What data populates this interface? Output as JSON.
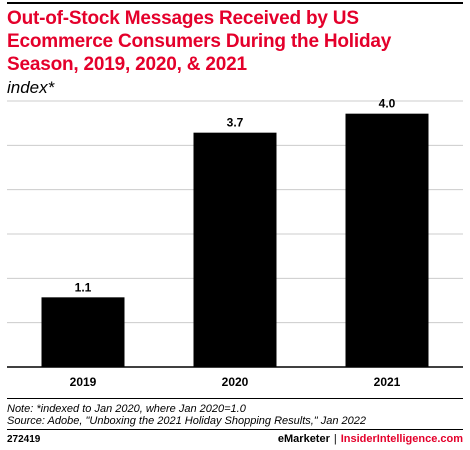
{
  "title": "Out-of-Stock Messages Received by US Ecommerce Consumers During the Holiday Season, 2019, 2020, & 2021",
  "subtitle": "index*",
  "chart_data": {
    "type": "bar",
    "categories": [
      "2019",
      "2020",
      "2021"
    ],
    "values": [
      1.1,
      3.7,
      4.0
    ],
    "value_labels": [
      "1.1",
      "3.7",
      "4.0"
    ],
    "ylim": [
      0,
      4.2
    ],
    "grid": true,
    "bar_color": "#000000"
  },
  "footer": {
    "note": "Note: *indexed to Jan 2020, where Jan 2020=1.0",
    "source": "Source: Adobe, \"Unboxing the 2021 Holiday Shopping Results,\" Jan 2022",
    "chart_id": "272419",
    "brand_emarketer": "eMarketer",
    "brand_separator": "|",
    "brand_insider": "InsiderIntelligence.com"
  },
  "colors": {
    "title": "#e4002b",
    "gridline": "#cccccc",
    "axis": "#000000"
  }
}
